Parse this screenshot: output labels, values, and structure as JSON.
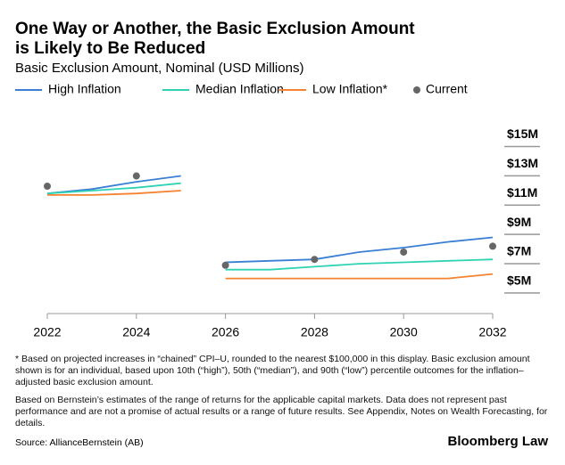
{
  "chart_data": {
    "type": "line",
    "title": "One Way or Another, the Basic Exclusion Amount is Likely to Be Reduced",
    "subtitle": "Basic Exclusion Amount, Nominal (USD Millions)",
    "x": [
      2022,
      2023,
      2024,
      2025,
      null,
      2026,
      2027,
      2028,
      2029,
      2030,
      2031,
      2032
    ],
    "series": [
      {
        "name": "High Inflation",
        "color": "#3a7fd5",
        "values": [
          11.0,
          11.3,
          11.8,
          12.2,
          null,
          6.3,
          6.4,
          6.5,
          7.0,
          7.3,
          7.7,
          8.0
        ]
      },
      {
        "name": "Median Inflation",
        "color": "#2fd3b4",
        "values": [
          11.0,
          11.2,
          11.4,
          11.7,
          null,
          5.8,
          5.8,
          6.0,
          6.2,
          6.3,
          6.4,
          6.5
        ]
      },
      {
        "name": "Low Inflation*",
        "color": "#f5822f",
        "values": [
          10.9,
          10.9,
          11.0,
          11.2,
          null,
          5.2,
          5.2,
          5.2,
          5.2,
          5.2,
          5.2,
          5.5
        ]
      },
      {
        "name": "Current",
        "color": "#666666",
        "type": "scatter",
        "x": [
          2022,
          2024,
          2026,
          2028,
          2030,
          2032
        ],
        "values": [
          11.5,
          12.2,
          6.1,
          6.5,
          7.0,
          7.4
        ]
      }
    ],
    "xlim": [
      2022,
      2032
    ],
    "xticks": [
      2022,
      2024,
      2026,
      2028,
      2030,
      2032
    ],
    "ylim": [
      2.8,
      15.7
    ],
    "yticks": [
      {
        "value": 5,
        "label": "$5M"
      },
      {
        "value": 7,
        "label": "$7M"
      },
      {
        "value": 9,
        "label": "$9M"
      },
      {
        "value": 11,
        "label": "$11M"
      },
      {
        "value": 13,
        "label": "$13M"
      },
      {
        "value": 15,
        "label": "$15M"
      }
    ],
    "notes": [
      "* Based on projected increases in “chained” CPI–U, rounded to the nearest $100,000 in this display. Basic exclusion amount shown is for an individual, based upon 10th (“high”), 50th (“median”), and 90th (“low”) percentile outcomes for the inflation–adjusted basic exclusion amount.",
      "Based on Bernstein’s estimates of the range of returns for the applicable capital markets. Data does not represent past performance and are not a promise of actual results or a range of future results. See Appendix, Notes on Wealth Forecasting, for details."
    ],
    "source": "Source: AllianceBernstein (AB)",
    "brand": "Bloomberg Law"
  }
}
